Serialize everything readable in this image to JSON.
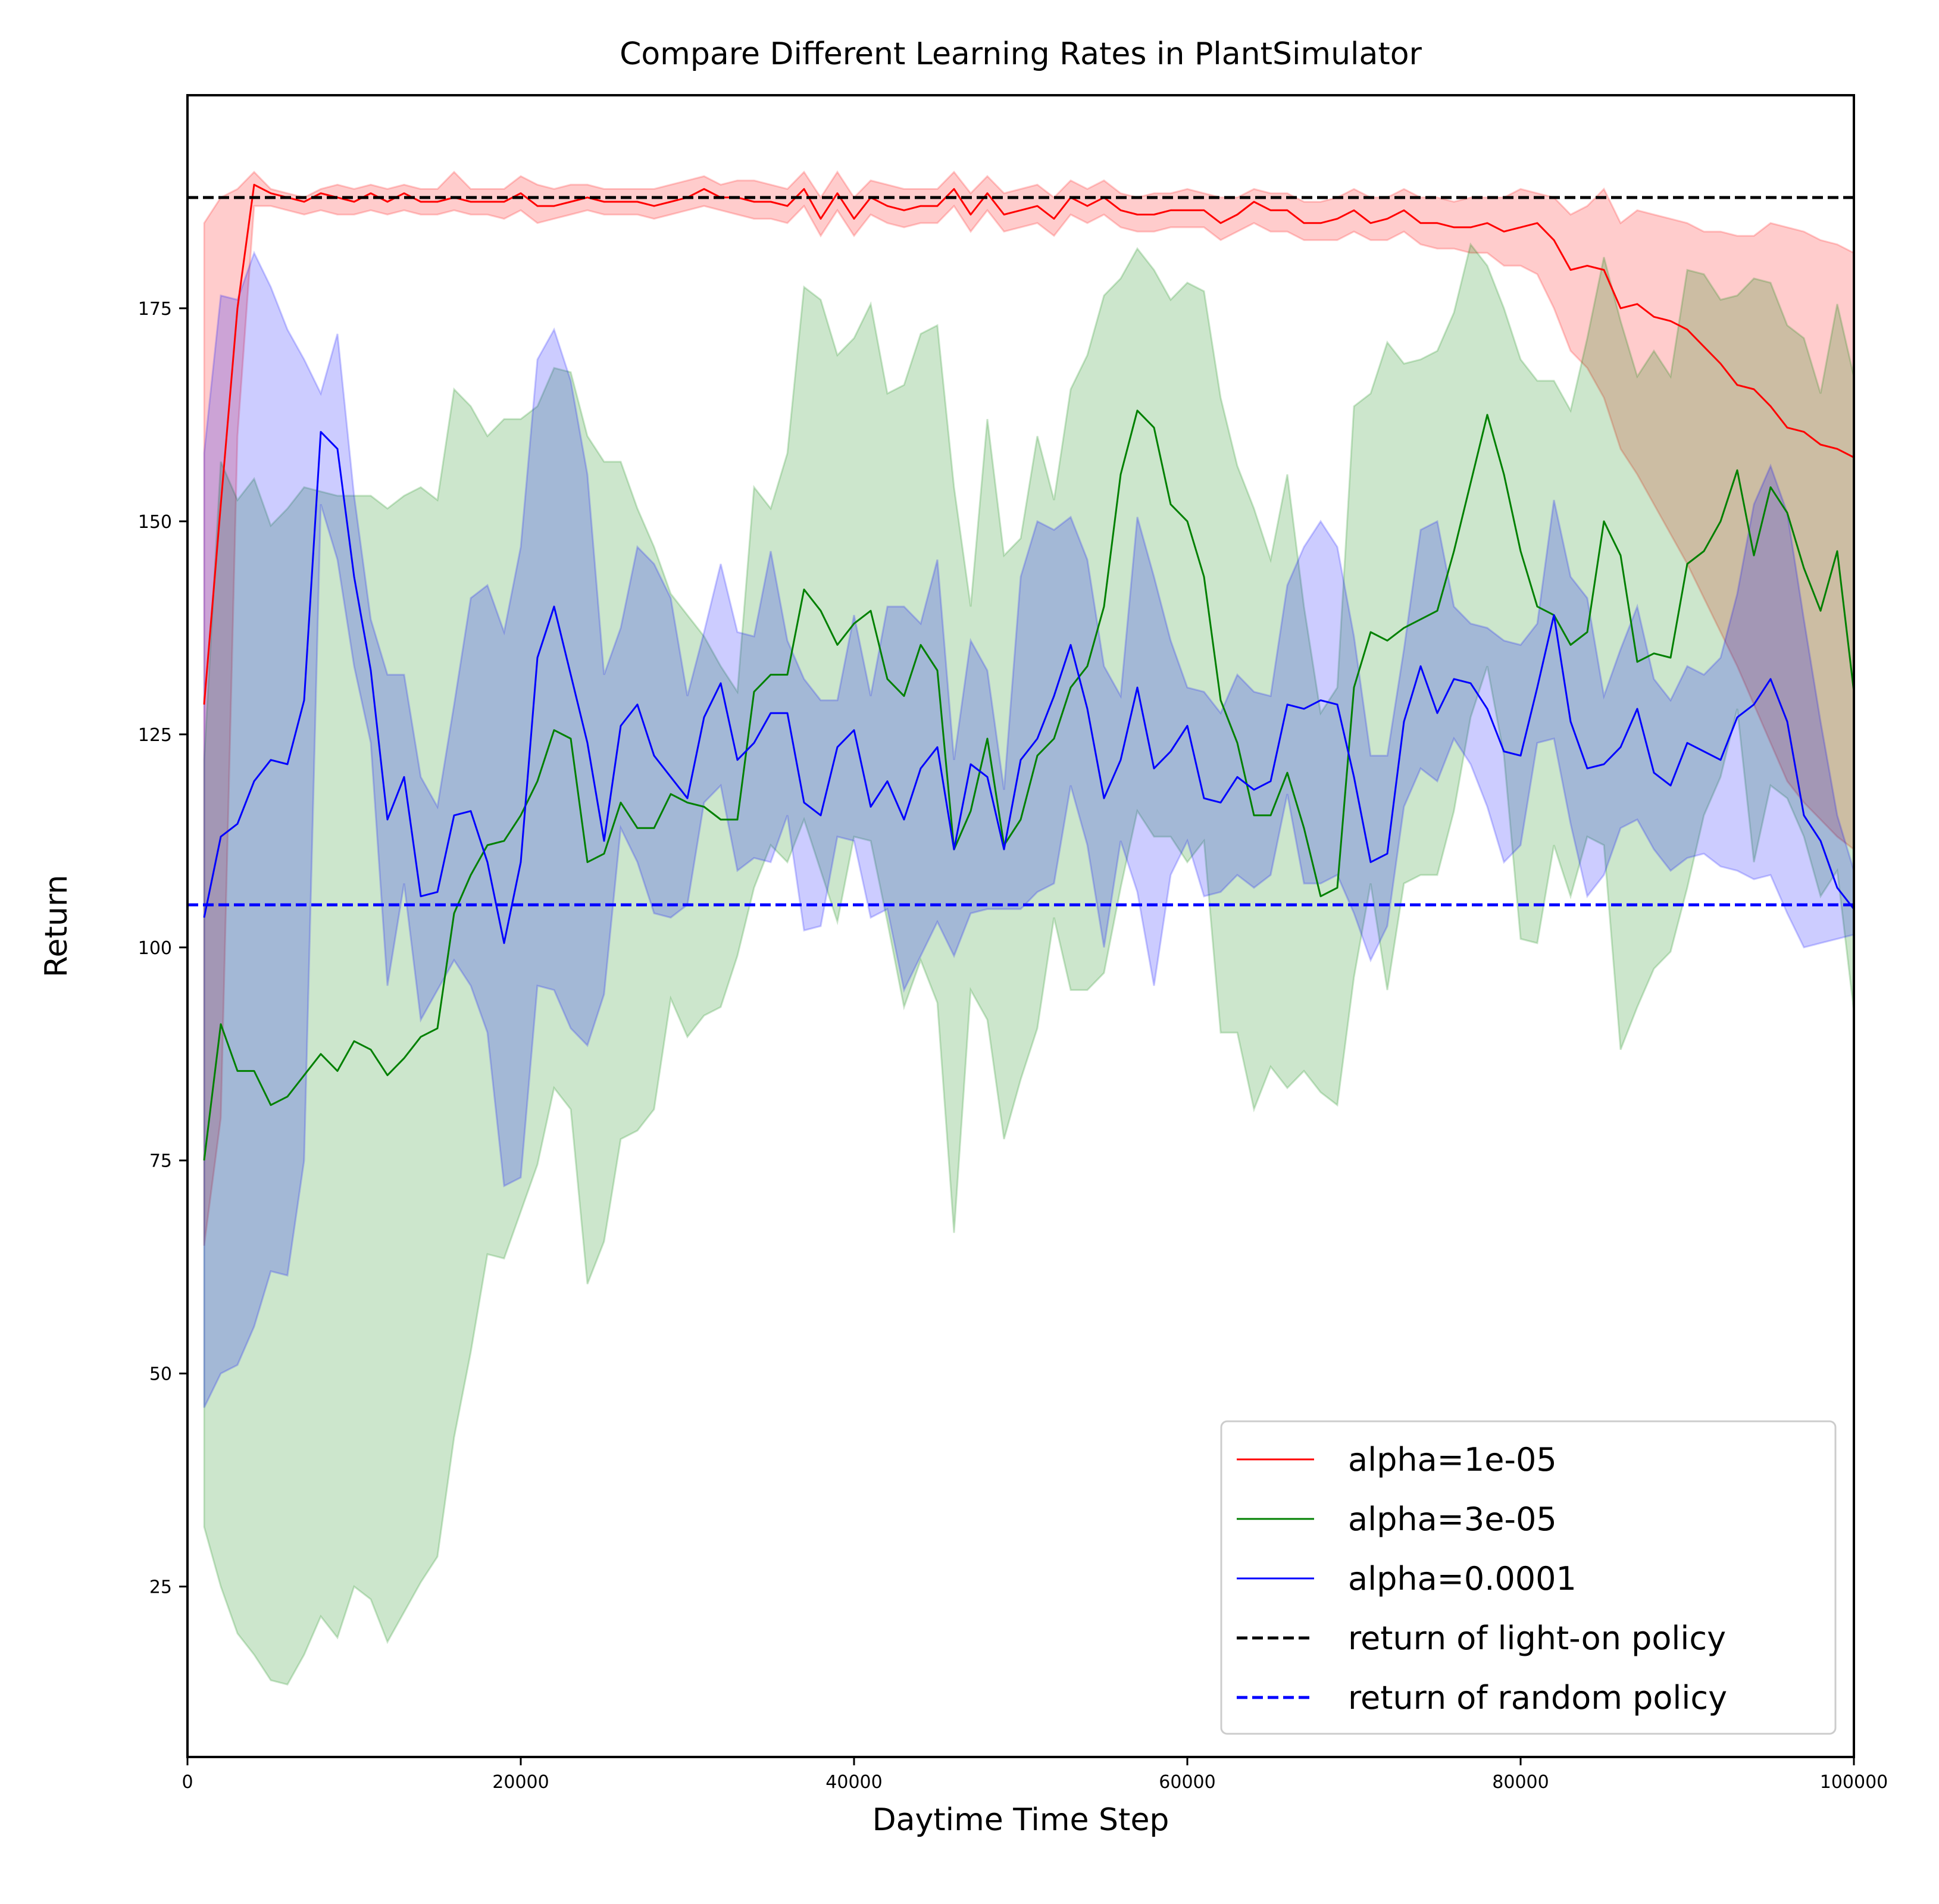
{
  "chart_data": {
    "type": "line",
    "title": "Compare Different Learning Rates in PlantSimulator",
    "xlabel": "Daytime Time Step",
    "ylabel": "Return",
    "xlim": [
      0,
      100000
    ],
    "ylim": [
      5,
      200
    ],
    "xticks": [
      0,
      20000,
      40000,
      60000,
      80000,
      100000
    ],
    "yticks": [
      25,
      50,
      75,
      100,
      125,
      150,
      175
    ],
    "xtick_labels": [
      "0",
      "20000",
      "40000",
      "60000",
      "80000",
      "100000"
    ],
    "ytick_labels": [
      "25",
      "50",
      "75",
      "100",
      "125",
      "150",
      "175"
    ],
    "grid": false,
    "legend_position": "lower-right",
    "x": [
      1000,
      2000,
      3000,
      4000,
      5000,
      6000,
      7000,
      8000,
      9000,
      10000,
      11000,
      12000,
      13000,
      14000,
      15000,
      16000,
      17000,
      18000,
      19000,
      20000,
      21000,
      22000,
      23000,
      24000,
      25000,
      26000,
      27000,
      28000,
      29000,
      30000,
      31000,
      32000,
      33000,
      34000,
      35000,
      36000,
      37000,
      38000,
      39000,
      40000,
      41000,
      42000,
      43000,
      44000,
      45000,
      46000,
      47000,
      48000,
      49000,
      50000,
      51000,
      52000,
      53000,
      54000,
      55000,
      56000,
      57000,
      58000,
      59000,
      60000,
      61000,
      62000,
      63000,
      64000,
      65000,
      66000,
      67000,
      68000,
      69000,
      70000,
      71000,
      72000,
      73000,
      74000,
      75000,
      76000,
      77000,
      78000,
      79000,
      80000,
      81000,
      82000,
      83000,
      84000,
      85000,
      86000,
      87000,
      88000,
      89000,
      90000,
      91000,
      92000,
      93000,
      94000,
      95000,
      96000,
      97000,
      98000,
      99000,
      100000
    ],
    "series": [
      {
        "name": "alpha=1e-05",
        "color": "#ff0000",
        "values": [
          128.5,
          152.0,
          175.0,
          189.5,
          188.5,
          188.0,
          187.5,
          188.5,
          188.0,
          187.5,
          188.5,
          187.5,
          188.5,
          187.5,
          187.5,
          188.0,
          187.5,
          187.5,
          187.5,
          188.5,
          187.0,
          187.0,
          187.5,
          188.0,
          187.5,
          187.5,
          187.5,
          187.0,
          187.5,
          188.0,
          189.0,
          188.0,
          188.0,
          187.5,
          187.5,
          187.0,
          189.0,
          185.5,
          188.5,
          185.5,
          188.0,
          187.0,
          186.5,
          187.0,
          187.0,
          189.0,
          186.0,
          188.5,
          186.0,
          186.5,
          187.0,
          185.5,
          188.0,
          187.0,
          188.0,
          186.5,
          186.0,
          186.0,
          186.5,
          186.5,
          186.5,
          185.0,
          186.0,
          187.5,
          186.5,
          186.5,
          185.0,
          185.0,
          185.5,
          186.5,
          185.0,
          185.5,
          186.5,
          185.0,
          185.0,
          184.5,
          184.5,
          185.0,
          184.0,
          184.5,
          185.0,
          183.0,
          179.5,
          180.0,
          179.5,
          175.0,
          175.5,
          174.0,
          173.5,
          172.5,
          170.5,
          168.5,
          166.0,
          165.5,
          163.5,
          161.0,
          160.5,
          159.0,
          158.5,
          157.5
        ],
        "lower": [
          65.0,
          80.0,
          160.0,
          187.0,
          187.0,
          186.5,
          186.0,
          186.5,
          186.0,
          186.0,
          186.5,
          186.0,
          186.5,
          186.0,
          186.0,
          186.5,
          186.0,
          186.0,
          185.5,
          186.5,
          185.0,
          185.5,
          186.0,
          186.5,
          186.0,
          186.0,
          186.0,
          185.5,
          186.0,
          186.5,
          187.0,
          186.5,
          186.0,
          185.5,
          185.5,
          185.0,
          187.0,
          183.5,
          186.5,
          183.5,
          186.0,
          185.0,
          184.5,
          185.0,
          185.0,
          187.0,
          184.0,
          186.5,
          184.0,
          184.5,
          185.0,
          183.5,
          186.0,
          185.0,
          186.0,
          184.5,
          184.0,
          184.0,
          184.5,
          184.5,
          184.5,
          183.0,
          184.0,
          185.0,
          184.0,
          184.0,
          183.0,
          183.0,
          183.0,
          184.0,
          183.0,
          183.0,
          184.0,
          182.5,
          182.0,
          182.0,
          181.5,
          181.5,
          180.0,
          180.0,
          179.0,
          175.0,
          170.0,
          168.0,
          164.5,
          158.5,
          155.5,
          152.0,
          148.5,
          145.0,
          141.0,
          137.0,
          133.0,
          128.5,
          124.0,
          119.5,
          117.0,
          115.0,
          113.0,
          111.5
        ],
        "upper": [
          185.0,
          188.0,
          189.0,
          191.0,
          189.0,
          188.5,
          188.0,
          189.0,
          189.5,
          189.0,
          189.5,
          189.0,
          189.5,
          189.0,
          189.0,
          191.0,
          189.0,
          189.0,
          189.0,
          190.5,
          189.5,
          189.0,
          189.5,
          189.5,
          189.0,
          189.0,
          189.0,
          189.0,
          189.5,
          190.0,
          190.5,
          189.5,
          190.0,
          190.0,
          189.5,
          189.0,
          191.0,
          188.0,
          191.0,
          188.0,
          190.0,
          189.5,
          189.0,
          189.0,
          189.0,
          191.0,
          188.5,
          190.5,
          188.5,
          189.0,
          189.5,
          188.0,
          190.0,
          189.0,
          190.0,
          188.5,
          188.0,
          188.5,
          188.5,
          189.0,
          188.5,
          188.0,
          188.0,
          189.0,
          188.5,
          188.5,
          187.5,
          187.5,
          188.0,
          189.0,
          188.0,
          188.0,
          189.0,
          188.0,
          188.0,
          187.5,
          188.0,
          188.0,
          188.0,
          189.0,
          188.5,
          188.0,
          186.0,
          187.0,
          189.0,
          185.0,
          186.5,
          186.0,
          185.5,
          185.0,
          184.0,
          184.0,
          183.5,
          183.5,
          185.0,
          184.5,
          184.0,
          183.0,
          182.5,
          181.5
        ]
      },
      {
        "name": "alpha=3e-05",
        "color": "#008000",
        "values": [
          75.0,
          91.0,
          85.5,
          85.5,
          81.5,
          82.5,
          85.0,
          87.5,
          85.5,
          89.0,
          88.0,
          85.0,
          87.0,
          89.5,
          90.5,
          104.0,
          108.5,
          112.0,
          112.5,
          115.5,
          119.5,
          125.5,
          124.5,
          110.0,
          111.0,
          117.0,
          114.0,
          114.0,
          118.0,
          117.0,
          116.5,
          115.0,
          115.0,
          130.0,
          132.0,
          132.0,
          142.0,
          139.5,
          135.5,
          138.0,
          139.5,
          131.5,
          129.5,
          135.5,
          132.5,
          111.5,
          116.0,
          124.5,
          112.0,
          115.0,
          122.5,
          124.5,
          130.5,
          133.0,
          140.0,
          155.5,
          163.0,
          161.0,
          152.0,
          150.0,
          143.5,
          129.0,
          124.0,
          115.5,
          115.5,
          120.5,
          114.0,
          106.0,
          107.0,
          130.5,
          137.0,
          136.0,
          137.5,
          138.5,
          139.5,
          146.5,
          154.5,
          162.5,
          155.5,
          146.5,
          140.0,
          139.0,
          135.5,
          137.0,
          150.0,
          146.0,
          133.5,
          134.5,
          134.0,
          145.0,
          146.5,
          150.0,
          156.0,
          146.0,
          154.0,
          151.0,
          144.5,
          139.5,
          146.5,
          130.0
        ],
        "lower": [
          32.0,
          25.0,
          19.5,
          17.0,
          14.0,
          13.5,
          17.0,
          21.5,
          19.0,
          25.0,
          23.5,
          18.5,
          22.0,
          25.5,
          28.5,
          42.5,
          52.5,
          64.0,
          63.5,
          69.0,
          74.5,
          83.5,
          81.0,
          60.5,
          65.5,
          77.5,
          78.5,
          81.0,
          94.0,
          89.5,
          92.0,
          93.0,
          99.0,
          107.0,
          112.0,
          110.0,
          115.0,
          109.0,
          103.0,
          113.0,
          112.5,
          103.0,
          93.0,
          98.5,
          93.5,
          66.5,
          95.0,
          91.5,
          77.5,
          84.5,
          90.5,
          103.5,
          95.0,
          95.0,
          97.0,
          107.0,
          116.0,
          113.0,
          113.0,
          110.0,
          112.5,
          90.0,
          90.0,
          81.0,
          86.0,
          83.5,
          85.5,
          83.0,
          81.5,
          96.5,
          107.5,
          95.0,
          107.5,
          108.5,
          108.5,
          116.0,
          127.0,
          133.0,
          122.5,
          101.0,
          100.5,
          112.0,
          106.0,
          113.0,
          112.0,
          88.0,
          93.0,
          97.5,
          99.5,
          107.0,
          115.5,
          120.0,
          128.0,
          110.0,
          119.0,
          117.5,
          113.0,
          106.0,
          109.0,
          92.5
        ],
        "upper": [
          122.0,
          157.0,
          152.5,
          155.0,
          149.5,
          151.5,
          154.0,
          153.5,
          153.0,
          153.0,
          153.0,
          151.5,
          153.0,
          154.0,
          152.5,
          165.5,
          163.5,
          160.0,
          162.0,
          162.0,
          163.5,
          168.0,
          167.5,
          160.0,
          157.0,
          157.0,
          151.5,
          147.0,
          141.5,
          139.0,
          136.5,
          133.0,
          130.0,
          154.0,
          151.5,
          158.0,
          177.5,
          176.0,
          169.5,
          171.5,
          175.5,
          165.0,
          166.0,
          172.0,
          173.0,
          154.0,
          140.0,
          162.0,
          146.0,
          148.0,
          160.0,
          152.5,
          165.5,
          169.5,
          176.5,
          178.5,
          182.0,
          179.5,
          176.0,
          178.0,
          177.0,
          164.5,
          156.5,
          151.5,
          145.5,
          155.5,
          140.0,
          127.5,
          130.5,
          163.5,
          165.0,
          171.0,
          168.5,
          169.0,
          170.0,
          174.5,
          182.5,
          180.0,
          175.0,
          169.0,
          166.5,
          166.5,
          163.0,
          171.5,
          181.0,
          173.5,
          167.0,
          170.0,
          167.0,
          179.5,
          179.0,
          176.0,
          176.5,
          178.5,
          178.0,
          173.0,
          171.5,
          165.0,
          175.5,
          167.0
        ]
      },
      {
        "name": "alpha=0.0001",
        "color": "#0000ff",
        "values": [
          103.5,
          113.0,
          114.5,
          119.5,
          122.0,
          121.5,
          129.0,
          160.5,
          158.5,
          143.5,
          132.5,
          115.0,
          120.0,
          106.0,
          106.5,
          115.5,
          116.0,
          110.0,
          100.5,
          110.0,
          134.0,
          140.0,
          132.0,
          124.0,
          112.5,
          126.0,
          128.5,
          122.5,
          120.0,
          117.5,
          127.0,
          131.0,
          122.0,
          124.0,
          127.5,
          127.5,
          117.0,
          115.5,
          123.5,
          125.5,
          116.5,
          119.5,
          115.0,
          121.0,
          123.5,
          111.5,
          121.5,
          120.0,
          111.5,
          122.0,
          124.5,
          129.5,
          135.5,
          128.0,
          117.5,
          122.0,
          130.5,
          121.0,
          123.0,
          126.0,
          117.5,
          117.0,
          120.0,
          118.5,
          119.5,
          128.5,
          128.0,
          129.0,
          128.5,
          120.0,
          110.0,
          111.0,
          126.5,
          133.0,
          127.5,
          131.5,
          131.0,
          128.0,
          123.0,
          122.5,
          130.5,
          139.0,
          126.5,
          121.0,
          121.5,
          123.5,
          128.0,
          120.5,
          119.0,
          124.0,
          123.0,
          122.0,
          127.0,
          128.5,
          131.5,
          126.5,
          115.5,
          112.5,
          107.0,
          104.5
        ],
        "lower": [
          46.0,
          50.0,
          51.0,
          55.5,
          62.0,
          61.5,
          75.0,
          152.0,
          145.5,
          133.0,
          124.0,
          95.5,
          107.5,
          91.5,
          95.0,
          98.5,
          95.5,
          90.0,
          72.0,
          73.0,
          95.5,
          95.0,
          90.5,
          88.5,
          94.5,
          114.0,
          110.0,
          104.0,
          103.5,
          105.0,
          117.0,
          119.0,
          109.0,
          110.5,
          110.0,
          115.5,
          102.0,
          102.5,
          113.0,
          112.5,
          103.5,
          104.5,
          95.0,
          99.0,
          103.0,
          99.0,
          104.0,
          104.5,
          104.5,
          104.5,
          106.5,
          107.5,
          119.0,
          112.0,
          100.0,
          112.5,
          106.5,
          95.5,
          108.5,
          112.5,
          106.0,
          106.5,
          108.5,
          107.0,
          108.5,
          118.0,
          107.5,
          107.5,
          108.5,
          104.0,
          98.5,
          102.5,
          116.5,
          121.0,
          119.5,
          124.5,
          121.5,
          116.5,
          110.0,
          112.0,
          124.0,
          124.5,
          114.5,
          106.0,
          108.5,
          114.0,
          115.0,
          111.5,
          109.0,
          110.5,
          111.0,
          109.5,
          109.0,
          108.0,
          108.5,
          104.0,
          100.0,
          100.5,
          101.0,
          101.5
        ],
        "upper": [
          158.0,
          176.5,
          176.0,
          181.5,
          177.5,
          172.5,
          169.0,
          165.0,
          172.0,
          153.0,
          138.5,
          132.0,
          132.0,
          120.0,
          116.5,
          128.5,
          141.0,
          142.5,
          137.0,
          147.0,
          169.0,
          172.5,
          166.5,
          155.5,
          132.0,
          137.5,
          147.0,
          145.0,
          141.0,
          129.5,
          137.0,
          145.0,
          137.0,
          136.5,
          146.5,
          136.0,
          131.5,
          129.0,
          129.0,
          139.0,
          129.5,
          140.0,
          140.0,
          138.0,
          145.5,
          122.0,
          136.0,
          132.5,
          118.5,
          143.5,
          150.0,
          149.0,
          150.5,
          145.5,
          133.0,
          129.5,
          150.5,
          143.5,
          136.0,
          130.5,
          130.0,
          127.5,
          132.0,
          130.0,
          129.5,
          142.5,
          147.0,
          150.0,
          147.0,
          136.5,
          122.5,
          122.5,
          135.0,
          149.0,
          150.0,
          140.0,
          138.0,
          137.5,
          136.0,
          135.5,
          138.0,
          152.5,
          143.5,
          141.0,
          129.5,
          135.0,
          140.0,
          131.5,
          129.0,
          133.0,
          132.0,
          134.0,
          141.5,
          152.0,
          156.5,
          151.0,
          138.5,
          126.5,
          115.5,
          109.0
        ]
      }
    ],
    "reference_lines": [
      {
        "name": "return of light-on policy",
        "y": 188.0,
        "color": "#000000"
      },
      {
        "name": "return of random policy",
        "y": 105.0,
        "color": "#0000ff"
      }
    ]
  }
}
